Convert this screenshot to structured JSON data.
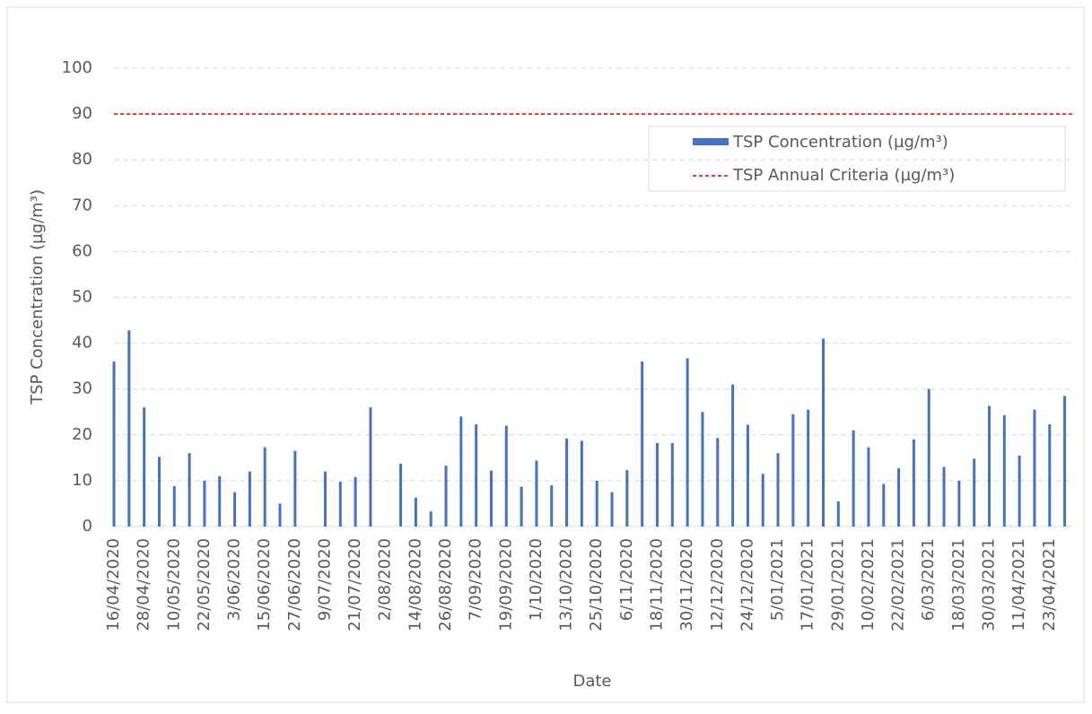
{
  "chart_data": {
    "type": "bar",
    "x_label": "Date",
    "y_label": "TSP Concentration (µg/m³)",
    "categories": [
      "16/04/2020",
      null,
      "28/04/2020",
      null,
      "10/05/2020",
      null,
      "22/05/2020",
      null,
      "3/06/2020",
      null,
      "15/06/2020",
      null,
      "27/06/2020",
      null,
      "9/07/2020",
      null,
      "21/07/2020",
      null,
      "2/08/2020",
      null,
      "14/08/2020",
      null,
      "26/08/2020",
      null,
      "7/09/2020",
      null,
      "19/09/2020",
      null,
      "1/10/2020",
      null,
      "13/10/2020",
      null,
      "25/10/2020",
      null,
      "6/11/2020",
      null,
      "18/11/2020",
      null,
      "30/11/2020",
      null,
      "12/12/2020",
      null,
      "24/12/2020",
      null,
      "5/01/2021",
      null,
      "17/01/2021",
      null,
      "29/01/2021",
      null,
      "10/02/2021",
      null,
      "22/02/2021",
      null,
      "6/03/2021",
      null,
      "18/03/2021",
      null,
      "30/03/2021",
      null,
      "11/04/2021",
      null,
      "23/04/2021",
      null
    ],
    "series": [
      {
        "name": "TSP Concentration (µg/m³)",
        "color": "#4472c4",
        "values": [
          36,
          42.8,
          26,
          15.2,
          8.8,
          16,
          10,
          11,
          7.5,
          12,
          17.3,
          5,
          16.5,
          null,
          12,
          9.8,
          10.8,
          26,
          null,
          13.7,
          6.3,
          3.3,
          13.3,
          24,
          22.3,
          12.2,
          22,
          8.7,
          14.4,
          9,
          19.2,
          18.7,
          10,
          7.5,
          12.3,
          36,
          18.2,
          18.2,
          36.7,
          25,
          19.3,
          31,
          22.2,
          11.5,
          16,
          24.5,
          25.5,
          41,
          5.5,
          21,
          17.3,
          9.3,
          12.7,
          19,
          30,
          13,
          10,
          14.8,
          26.3,
          24.3,
          15.5,
          25.5,
          22.3,
          28.5
        ]
      }
    ],
    "reference_line": {
      "name": "TSP Annual Criteria (µg/m³)",
      "color": "#e00000",
      "value": 90
    },
    "ylim": [
      0,
      100
    ],
    "yticks": [
      0,
      10,
      20,
      30,
      40,
      50,
      60,
      70,
      80,
      90,
      100
    ],
    "grid": true
  }
}
